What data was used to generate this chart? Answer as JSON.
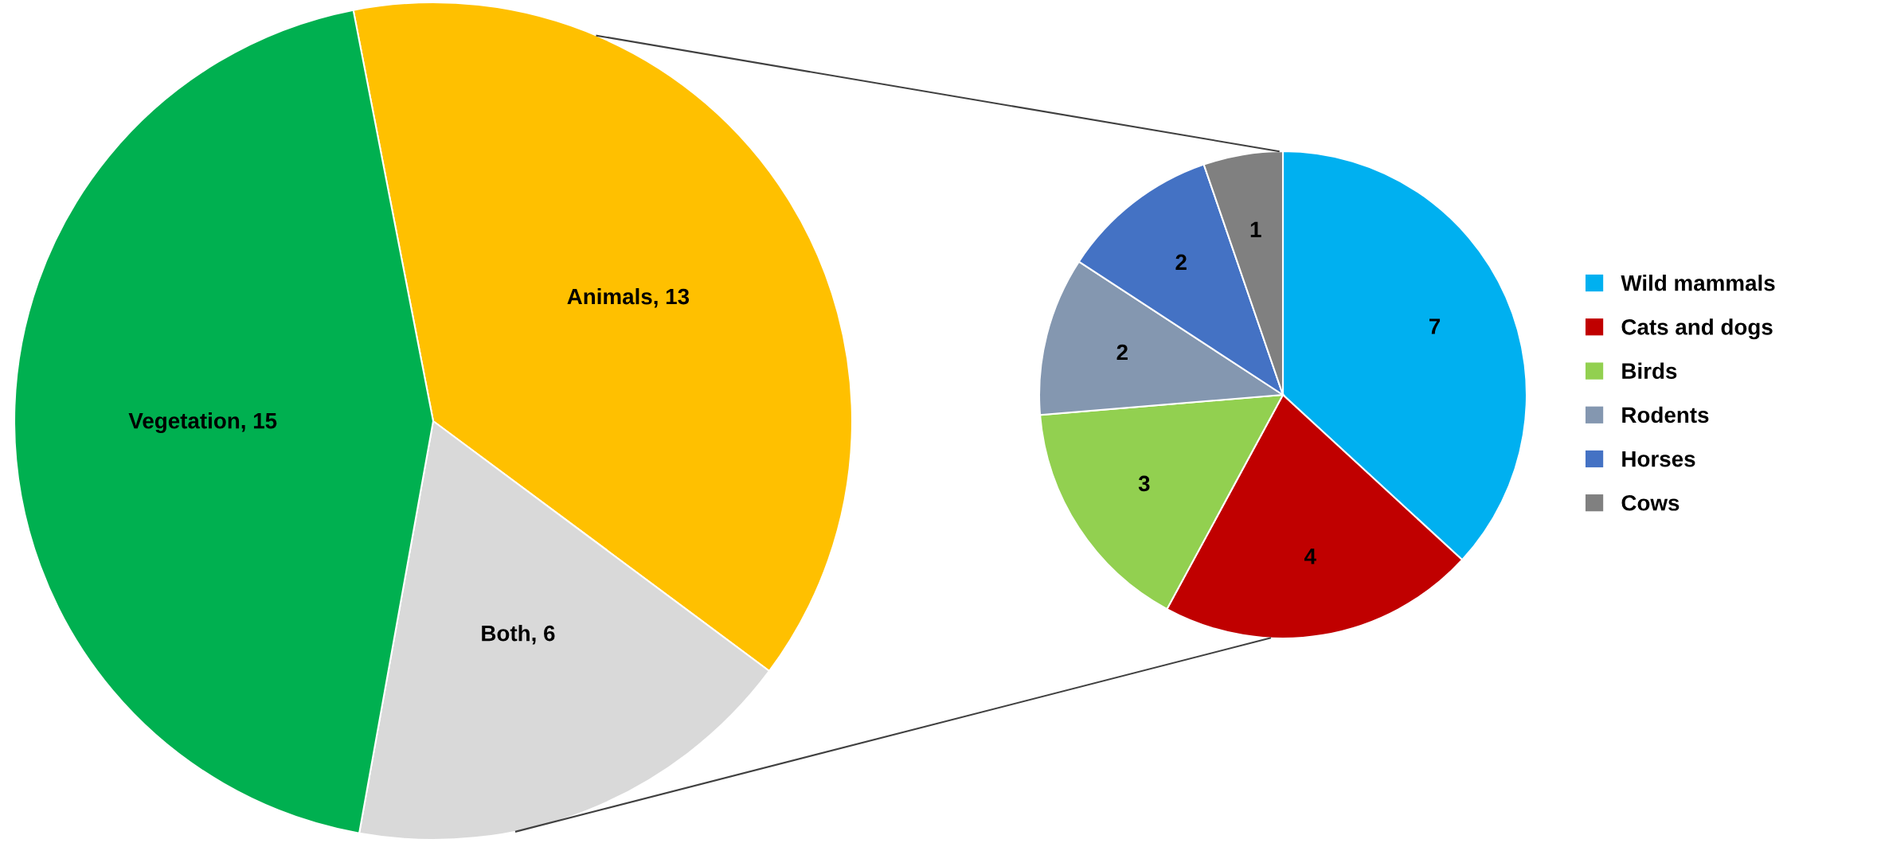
{
  "chart_data": [
    {
      "type": "pie",
      "categories": [
        null,
        null,
        null
      ],
      "values": [
        13,
        6,
        15
      ],
      "value_labels": [
        "Animals, 13",
        "Both, 6",
        "Vegetation, 15"
      ],
      "colors": [
        "#ffc000",
        "#d9d9d9",
        "#00b050"
      ]
    },
    {
      "type": "pie",
      "categories": [
        "Wild mammals",
        "Cats and dogs",
        "Birds",
        "Rodents",
        "Horses",
        "Cows"
      ],
      "values": [
        7,
        4,
        3,
        2,
        2,
        1
      ],
      "colors": [
        "#00b0f0",
        "#c00000",
        "#92d050",
        "#8497b0",
        "#4472c4",
        "#808080"
      ],
      "data_labels": true,
      "legend": "right"
    }
  ]
}
